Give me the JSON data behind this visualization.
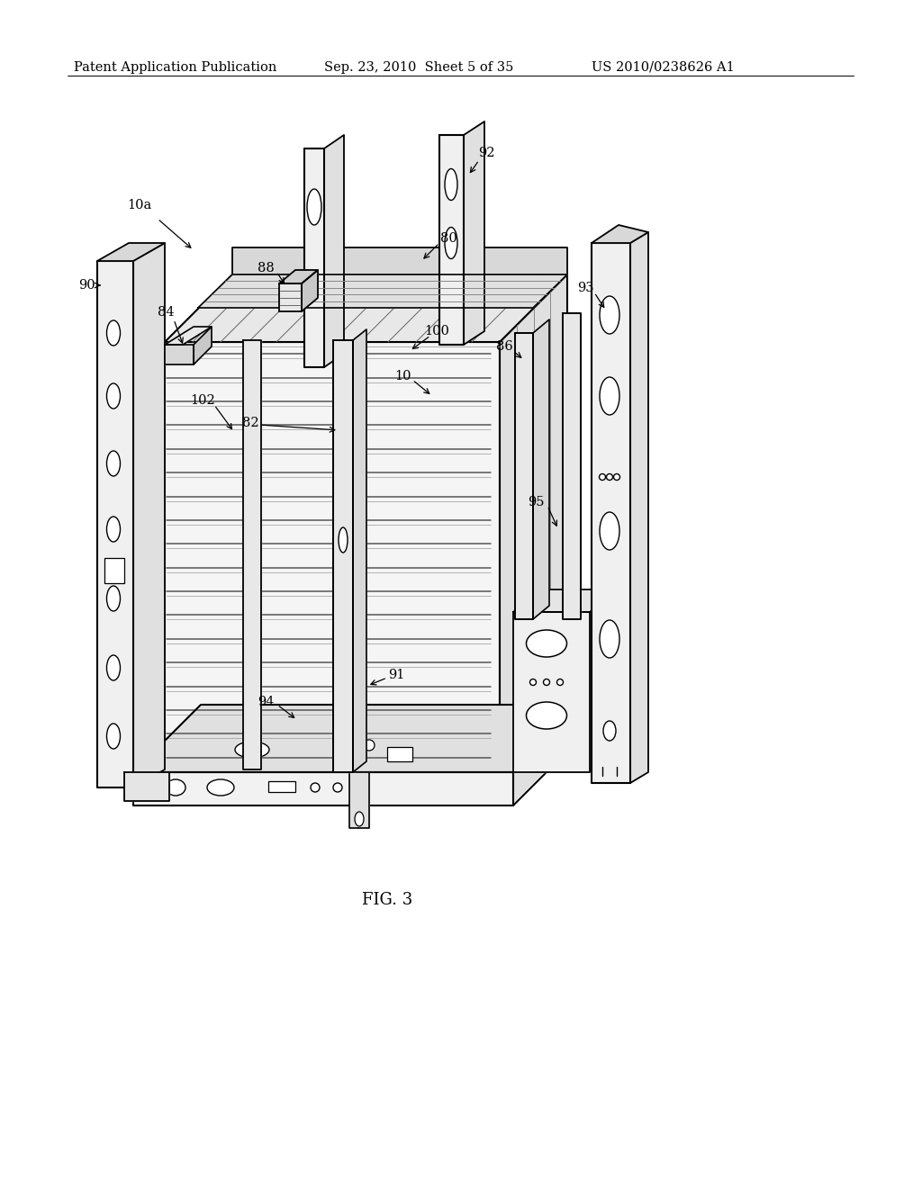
{
  "background_color": "#ffffff",
  "header_left": "Patent Application Publication",
  "header_mid": "Sep. 23, 2010  Sheet 5 of 35",
  "header_right": "US 2010/0238626 A1",
  "figure_label": "FIG. 3",
  "header_fontsize": 10.5,
  "label_fontsize": 10.5,
  "line_color": "#1a1a1a",
  "lw_main": 1.6,
  "lw_thin": 0.85,
  "lw_detail": 0.7
}
